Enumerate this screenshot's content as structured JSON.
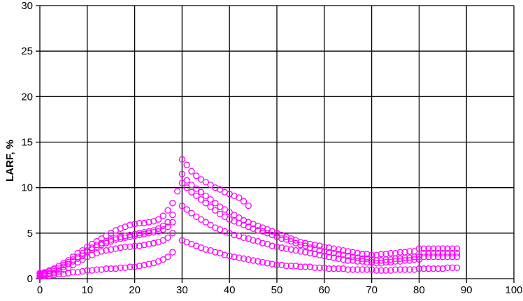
{
  "chart_data": {
    "type": "scatter",
    "title": "",
    "xlabel": "",
    "ylabel": "LARF, %",
    "xlim": [
      0,
      100
    ],
    "ylim": [
      0,
      30
    ],
    "xticks": [
      "0",
      "10",
      "20",
      "30",
      "40",
      "50",
      "60",
      "70",
      "80",
      "90",
      "100"
    ],
    "yticks": [
      "0",
      "5",
      "10",
      "15",
      "20",
      "25",
      "30"
    ],
    "grid": true,
    "legend": "none",
    "marker": "open-circle",
    "marker_color": "#ff00ff",
    "series": [
      {
        "segments": [
          {
            "x_start": 0,
            "y": [
              0.6,
              0.7,
              0.9,
              1.1,
              1.4,
              1.7,
              2.0,
              2.4,
              2.8,
              3.1,
              3.5,
              3.8,
              4.1,
              4.4,
              4.7,
              5.0,
              5.3,
              5.5,
              5.7,
              5.9,
              6.0,
              6.1,
              6.1,
              6.2,
              6.3,
              6.5,
              6.9,
              7.5,
              8.3,
              9.6
            ]
          },
          {
            "x_start": 30,
            "y": [
              13.1,
              12.5,
              11.8,
              11.3,
              10.9,
              10.6,
              10.3,
              10.0,
              9.8,
              9.5,
              9.3,
              9.1,
              8.9,
              8.5,
              8.0
            ]
          }
        ]
      },
      {
        "segments": [
          {
            "x_start": 0,
            "y": [
              0.5,
              0.6,
              0.8,
              1.0,
              1.2,
              1.5,
              1.8,
              2.1,
              2.4,
              2.8,
              3.1,
              3.4,
              3.7,
              3.9,
              4.1,
              4.3,
              4.5,
              4.6,
              4.7,
              4.8,
              4.9,
              5.0,
              5.1,
              5.2,
              5.3,
              5.5,
              5.8,
              6.2,
              7.0
            ]
          },
          {
            "x_start": 30,
            "y": [
              11.5,
              10.8,
              10.3,
              9.9,
              9.5,
              9.1,
              8.7,
              8.3,
              7.9,
              7.6,
              7.3,
              7.0,
              6.7,
              6.4,
              6.2,
              6.0,
              5.8,
              5.6,
              5.4,
              5.2,
              5.0,
              4.8,
              4.6,
              4.4,
              4.2,
              4.0,
              3.9,
              3.8,
              3.7,
              3.6,
              3.5,
              3.4,
              3.3,
              3.2,
              3.1,
              3.0,
              2.9,
              2.8,
              2.7,
              2.7,
              2.6,
              2.6,
              2.7,
              2.7,
              2.8,
              2.8,
              2.9,
              2.9,
              3.0,
              3.0,
              3.3,
              3.3,
              3.3,
              3.3,
              3.3,
              3.3,
              3.3,
              3.3,
              3.3
            ]
          }
        ]
      },
      {
        "segments": [
          {
            "x_start": 0,
            "y": [
              0.4,
              0.5,
              0.6,
              0.8,
              1.0,
              1.3,
              1.6,
              1.9,
              2.2,
              2.5,
              2.9,
              3.2,
              3.5,
              3.7,
              3.9,
              4.1,
              4.3,
              4.4,
              4.5,
              4.6,
              4.7,
              4.8,
              4.9,
              5.0,
              5.1,
              5.2,
              5.4,
              5.7,
              6.2
            ]
          },
          {
            "x_start": 30,
            "y": [
              10.5,
              10.0,
              9.5,
              9.1,
              8.7,
              8.3,
              7.9,
              7.5,
              7.1,
              6.8,
              6.5,
              6.3,
              6.1,
              5.9,
              5.7,
              5.5,
              5.3,
              5.2,
              5.0,
              4.8,
              4.6,
              4.4,
              4.3,
              4.1,
              3.9,
              3.7,
              3.6,
              3.4,
              3.3,
              3.1,
              3.0,
              2.9,
              2.8,
              2.7,
              2.6,
              2.5,
              2.4,
              2.3,
              2.2,
              2.2,
              2.1,
              2.0,
              2.0,
              2.1,
              2.1,
              2.2,
              2.2,
              2.3,
              2.3,
              2.4,
              2.4,
              2.8,
              2.8,
              2.8,
              2.8,
              2.8,
              2.8,
              2.8,
              2.8
            ]
          }
        ]
      },
      {
        "segments": [
          {
            "x_start": 0,
            "y": [
              0.3,
              0.4,
              0.5,
              0.6,
              0.8,
              1.0,
              1.2,
              1.5,
              1.8,
              2.1,
              2.4,
              2.6,
              2.8,
              3.0,
              3.1,
              3.2,
              3.3,
              3.4,
              3.5,
              3.5,
              3.6,
              3.6,
              3.7,
              3.8,
              3.9,
              4.0,
              4.2,
              4.5,
              5.0
            ]
          },
          {
            "x_start": 30,
            "y": [
              8.0,
              7.6,
              7.2,
              6.8,
              6.5,
              6.2,
              5.9,
              5.6,
              5.4,
              5.2,
              5.0,
              4.8,
              4.7,
              4.5,
              4.4,
              4.2,
              4.1,
              3.9,
              3.8,
              3.6,
              3.5,
              3.4,
              3.3,
              3.2,
              3.1,
              3.0,
              2.9,
              2.8,
              2.7,
              2.6,
              2.5,
              2.4,
              2.3,
              2.2,
              2.1,
              2.0,
              2.0,
              1.9,
              1.9,
              1.8,
              1.8,
              1.7,
              1.7,
              1.8,
              1.8,
              1.9,
              1.9,
              2.0,
              2.0,
              2.1,
              2.1,
              2.4,
              2.4,
              2.4,
              2.4,
              2.4,
              2.4,
              2.4,
              2.4
            ]
          }
        ]
      },
      {
        "segments": [
          {
            "x_start": 0,
            "y": [
              0.2,
              0.3,
              0.3,
              0.4,
              0.5,
              0.5,
              0.6,
              0.7,
              0.7,
              0.8,
              0.9,
              0.9,
              1.0,
              1.0,
              1.1,
              1.1,
              1.1,
              1.2,
              1.2,
              1.3,
              1.3,
              1.4,
              1.5,
              1.6,
              1.7,
              1.9,
              2.1,
              2.4,
              2.9
            ]
          },
          {
            "x_start": 30,
            "y": [
              4.2,
              4.0,
              3.8,
              3.6,
              3.4,
              3.2,
              3.1,
              2.9,
              2.8,
              2.6,
              2.5,
              2.4,
              2.3,
              2.2,
              2.1,
              2.0,
              1.9,
              1.8,
              1.7,
              1.6,
              1.5,
              1.5,
              1.4,
              1.4,
              1.4,
              1.3,
              1.3,
              1.3,
              1.2,
              1.2,
              1.2,
              1.1,
              1.1,
              1.1,
              1.1,
              1.0,
              1.0,
              1.0,
              1.0,
              1.0,
              1.0,
              0.9,
              0.9,
              0.9,
              0.9,
              1.0,
              1.0,
              1.0,
              1.0,
              1.0,
              1.1,
              1.1,
              1.1,
              1.1,
              1.1,
              1.1,
              1.2,
              1.2,
              1.2
            ]
          }
        ]
      }
    ]
  }
}
